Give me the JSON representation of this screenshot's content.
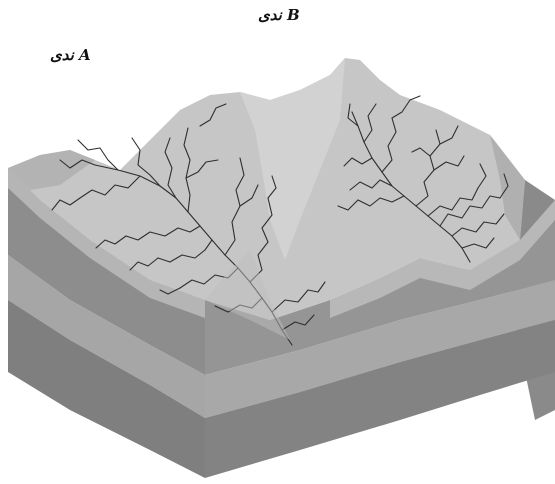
{
  "labels": {
    "river_a": "ندی A",
    "river_b": "ندی B"
  },
  "colors": {
    "surface": "#c9c9c9",
    "slope": "#a9a9a9",
    "front_upper": "#8f8f8f",
    "front_band": "#a4a4a4",
    "front_lower": "#7e7e7e",
    "side": "#9a9a9a",
    "rivers": "#2f2f2f"
  }
}
